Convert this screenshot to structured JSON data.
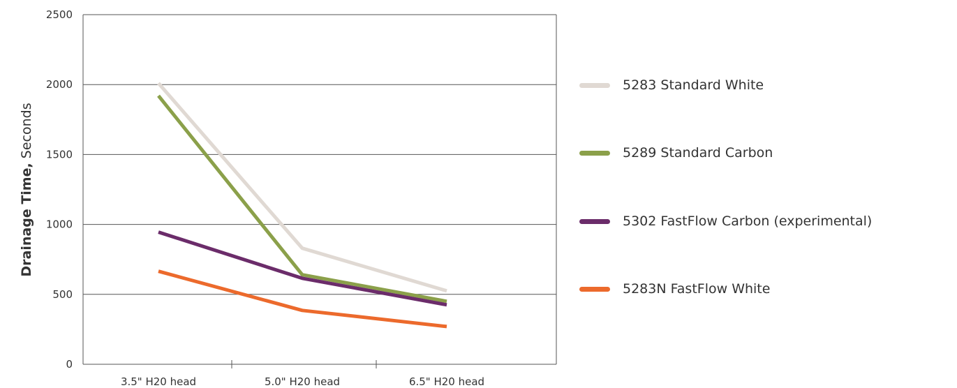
{
  "chart_data": {
    "type": "line",
    "categories": [
      "3.5\" H20 head",
      "5.0\" H20 head",
      "6.5\" H20 head"
    ],
    "ylabel_bold": "Drainage Time,",
    "ylabel_rest": "Seconds",
    "ylim": [
      0,
      2500
    ],
    "yticks": [
      "0",
      "500",
      "1000",
      "1500",
      "2000",
      "2500"
    ],
    "grid": true,
    "legend_position": "right",
    "series": [
      {
        "name": "5283 Standard White",
        "color": "#e0d9d3",
        "values": [
          2010,
          830,
          525
        ]
      },
      {
        "name": "5289 Standard Carbon",
        "color": "#8ba04a",
        "values": [
          1920,
          640,
          450
        ]
      },
      {
        "name": "5302 FastFlow Carbon (experimental)",
        "color": "#6b2c6a",
        "values": [
          945,
          615,
          425
        ]
      },
      {
        "name": "5283N FastFlow White",
        "color": "#ec6a2c",
        "values": [
          665,
          385,
          270
        ]
      }
    ]
  }
}
